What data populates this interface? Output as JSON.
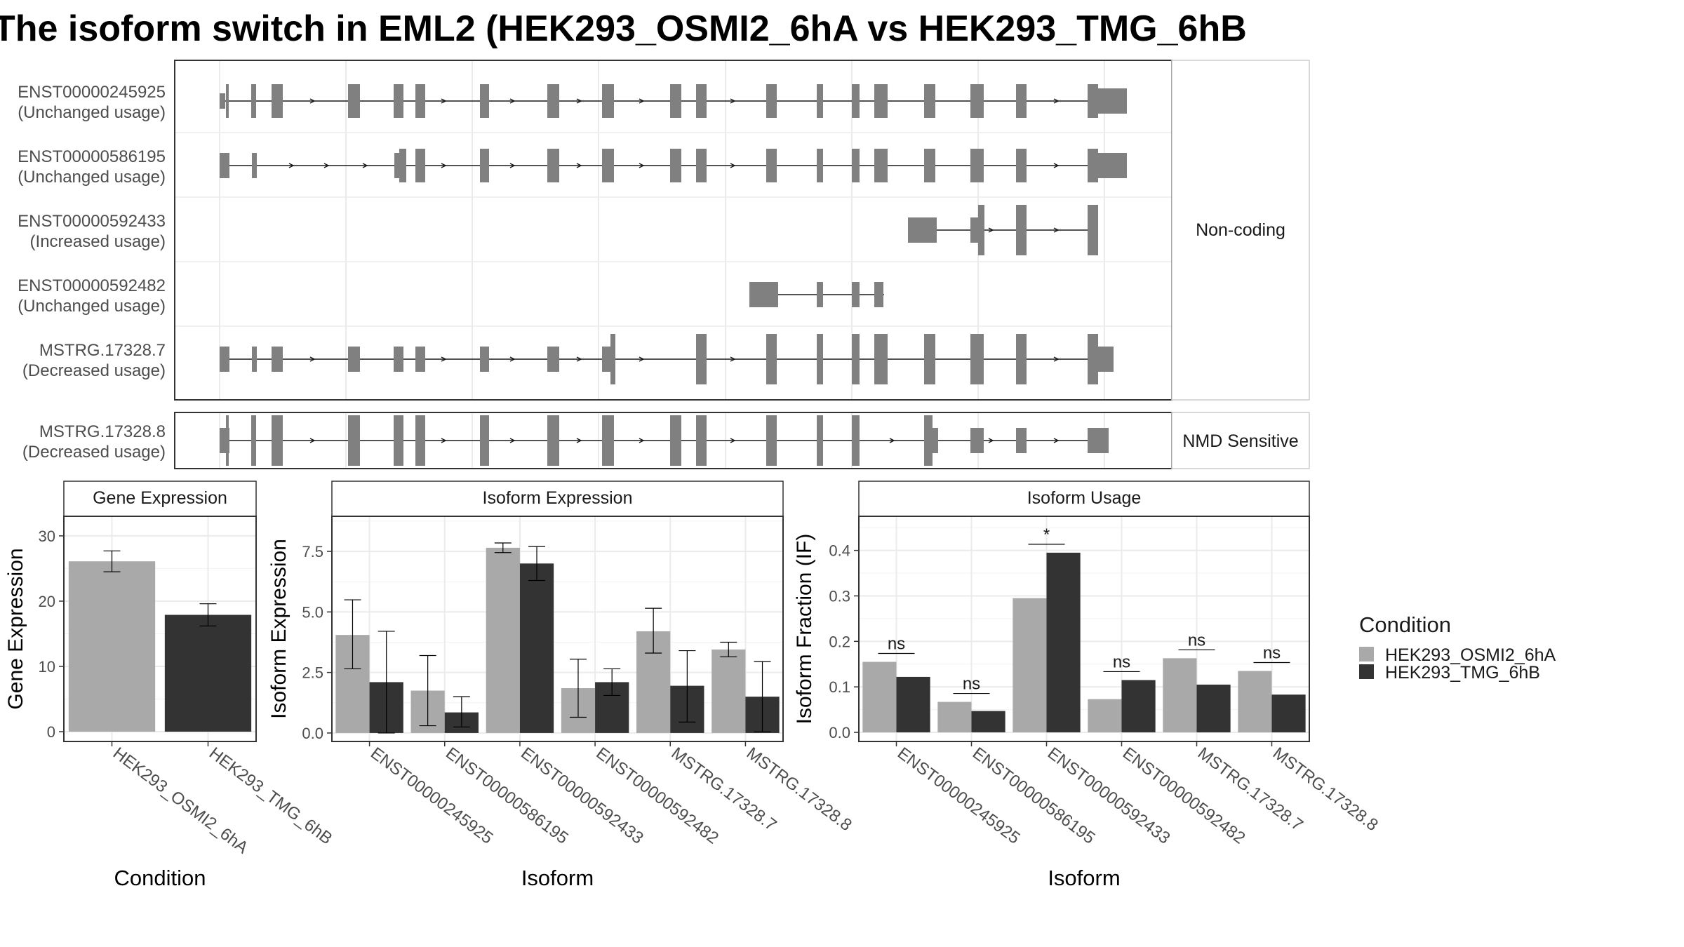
{
  "title": "The isoform switch in EML2 (HEK293_OSMI2_6hA vs HEK293_TMG_6hB",
  "structure": {
    "facets": [
      "Non-coding",
      "NMD Sensitive"
    ],
    "isoforms": [
      {
        "id": "ENST00000245925",
        "status": "(Unchanged usage)",
        "facet": 0
      },
      {
        "id": "ENST00000586195",
        "status": "(Unchanged usage)",
        "facet": 0
      },
      {
        "id": "ENST00000592433",
        "status": "(Increased usage)",
        "facet": 0
      },
      {
        "id": "ENST00000592482",
        "status": "(Unchanged usage)",
        "facet": 0
      },
      {
        "id": "MSTRG.17328.7",
        "status": "(Decreased usage)",
        "facet": 0
      },
      {
        "id": "MSTRG.17328.8",
        "status": "(Decreased usage)",
        "facet": 1
      }
    ]
  },
  "colors": {
    "HEK293_OSMI2_6hA": "#a9a9a9",
    "HEK293_TMG_6hB": "#333333",
    "exon": "#808080"
  },
  "chart_data": [
    {
      "type": "bar",
      "title": "Gene Expression",
      "xlabel": "Condition",
      "ylabel": "Gene Expression",
      "categories": [
        "HEK293_OSMI2_6hA",
        "HEK293_TMG_6hB"
      ],
      "ylim": [
        -1.5,
        33
      ],
      "yticks": [
        0,
        10,
        20,
        30
      ],
      "series": [
        {
          "values": [
            26.1,
            17.9
          ],
          "err_low": [
            24.5,
            16.2
          ],
          "err_high": [
            27.7,
            19.6
          ]
        }
      ]
    },
    {
      "type": "bar",
      "title": "Isoform Expression",
      "xlabel": "Isoform",
      "ylabel": "Isoform Expression",
      "categories": [
        "ENST00000245925",
        "ENST00000586195",
        "ENST00000592433",
        "ENST00000592482",
        "MSTRG.17328.7",
        "MSTRG.17328.8"
      ],
      "ylim": [
        -0.35,
        8.95
      ],
      "yticks": [
        "0.0",
        "2.5",
        "5.0",
        "7.5"
      ],
      "series": [
        {
          "name": "HEK293_OSMI2_6hA",
          "values": [
            4.05,
            1.75,
            7.65,
            1.85,
            4.2,
            3.45
          ],
          "err_low": [
            2.65,
            0.3,
            7.45,
            0.65,
            3.3,
            3.15
          ],
          "err_high": [
            5.5,
            3.2,
            7.85,
            3.05,
            5.15,
            3.75
          ]
        },
        {
          "name": "HEK293_TMG_6hB",
          "values": [
            2.1,
            0.85,
            7.0,
            2.1,
            1.95,
            1.5
          ],
          "err_low": [
            0.0,
            0.25,
            6.3,
            1.55,
            0.45,
            0.05
          ],
          "err_high": [
            4.2,
            1.5,
            7.7,
            2.65,
            3.4,
            2.95
          ]
        }
      ]
    },
    {
      "type": "bar",
      "title": "Isoform Usage",
      "xlabel": "Isoform",
      "ylabel": "Isoform Fraction (IF)",
      "categories": [
        "ENST00000245925",
        "ENST00000586195",
        "ENST00000592433",
        "ENST00000592482",
        "MSTRG.17328.7",
        "MSTRG.17328.8"
      ],
      "ylim": [
        -0.02,
        0.475
      ],
      "yticks": [
        "0.0",
        "0.1",
        "0.2",
        "0.3",
        "0.4"
      ],
      "series": [
        {
          "name": "HEK293_OSMI2_6hA",
          "values": [
            0.155,
            0.067,
            0.295,
            0.073,
            0.163,
            0.135
          ]
        },
        {
          "name": "HEK293_TMG_6hB",
          "values": [
            0.122,
            0.047,
            0.395,
            0.115,
            0.105,
            0.083
          ]
        }
      ],
      "significance": [
        "ns",
        "ns",
        "*",
        "ns",
        "ns",
        "ns"
      ]
    }
  ],
  "legend": {
    "title": "Condition",
    "items": [
      "HEK293_OSMI2_6hA",
      "HEK293_TMG_6hB"
    ]
  }
}
